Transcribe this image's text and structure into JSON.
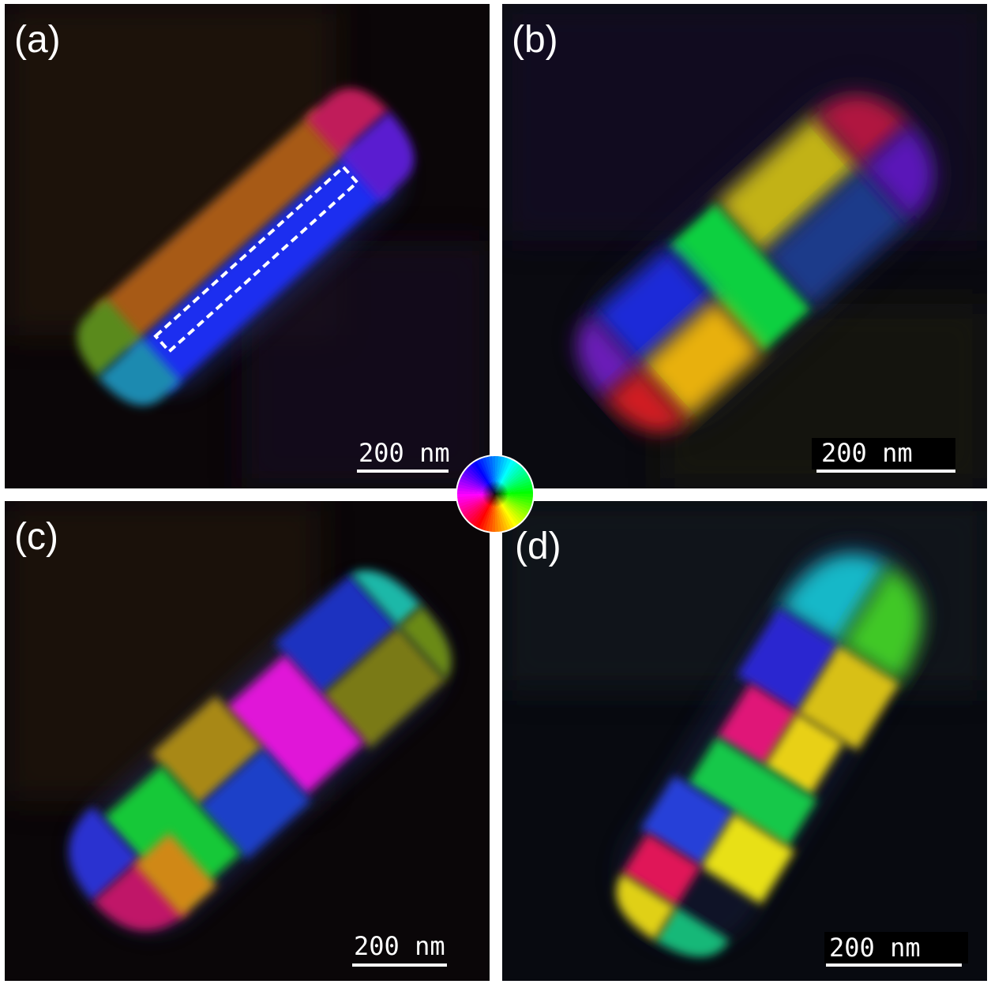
{
  "panels": [
    {
      "id": "a",
      "label": "(a)",
      "scale_bar": "200 nm"
    },
    {
      "id": "b",
      "label": "(b)",
      "scale_bar": "200 nm"
    },
    {
      "id": "c",
      "label": "(c)",
      "scale_bar": "200 nm"
    },
    {
      "id": "d",
      "label": "(d)",
      "scale_bar": "200 nm"
    }
  ],
  "color_wheel": {
    "icon": "hue-color-wheel-icon"
  }
}
